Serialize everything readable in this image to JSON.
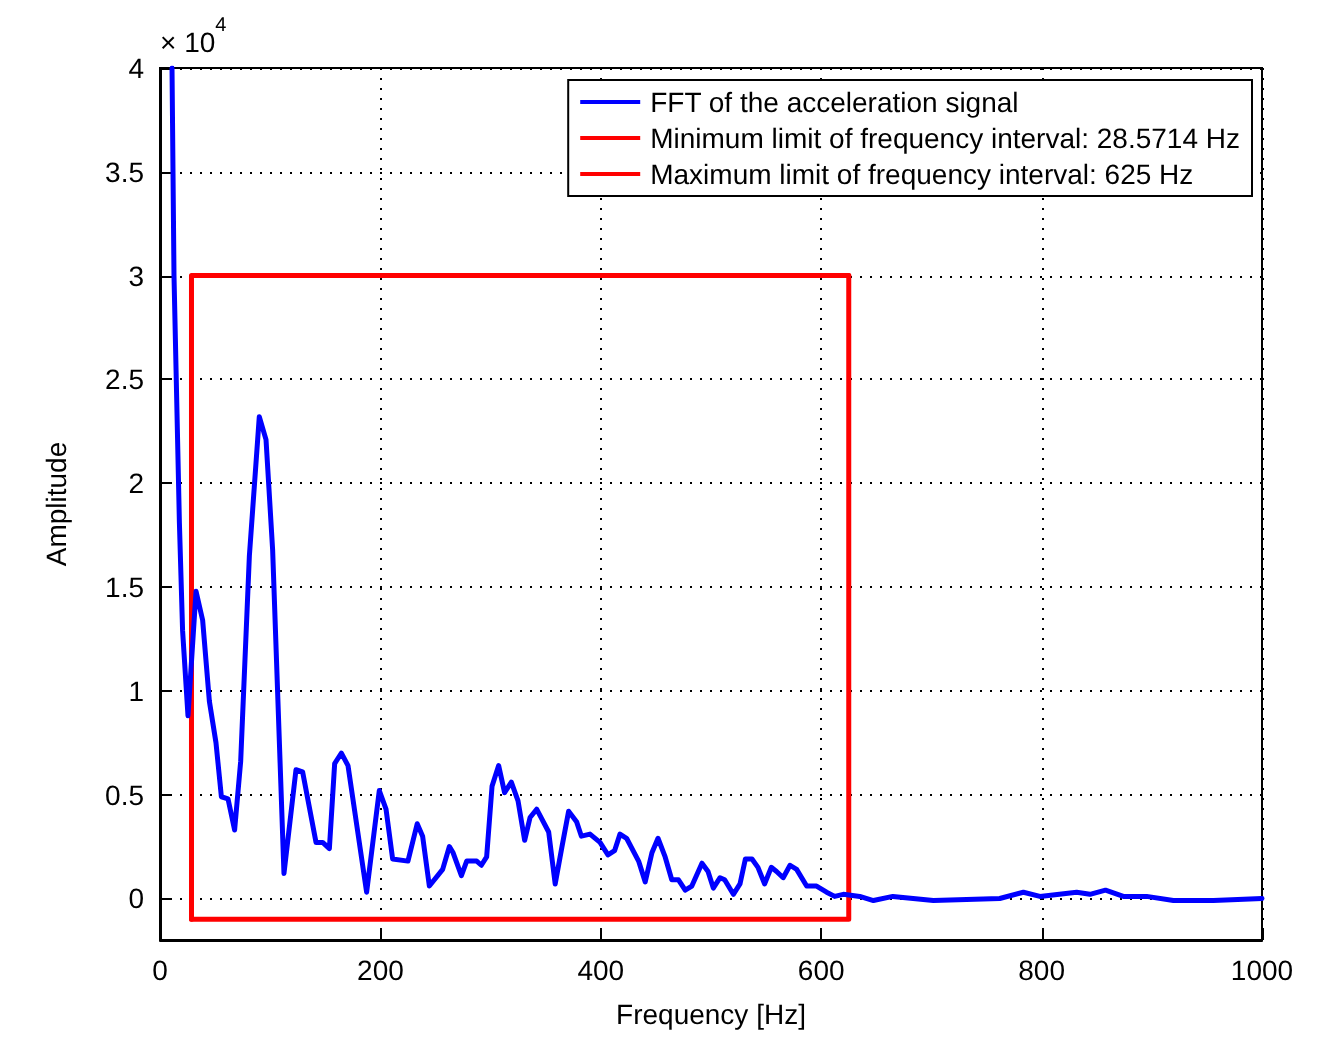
{
  "chart_data": {
    "type": "line",
    "xlabel": "Frequency [Hz]",
    "ylabel": "Amplitude",
    "annotations": [
      "× 10$^{4}$"
    ],
    "xlim": [
      0,
      1000
    ],
    "xticks": [
      0,
      200,
      400,
      600,
      800,
      1000
    ],
    "ylim": [
      -0.2,
      4
    ],
    "yticks": [
      0,
      0.5,
      1,
      1.5,
      2,
      2.5,
      3,
      3.5,
      4
    ],
    "grid": true,
    "legend": "top right",
    "marker": "none",
    "line_style": "solid",
    "series": [
      {
        "name": "FFT of the acceleration signal",
        "color": "#0000ff",
        "x": [
          10.9,
          12.7,
          17.6,
          20.5,
          25.4,
          32.7,
          38.7,
          44.8,
          50.8,
          55.7,
          61.7,
          67.7,
          73.2,
          81.1,
          90.1,
          96.2,
          102.2,
          112.5,
          123.4,
          129.4,
          141.6,
          147.6,
          153.7,
          158.5,
          164.6,
          170.6,
          187.5,
          199,
          205.1,
          211.1,
          225,
          233.4,
          238.3,
          244.4,
          256.5,
          262.6,
          266,
          273.5,
          278.3,
          287.4,
          291.6,
          296.4,
          301.3,
          307.3,
          312.7,
          318.8,
          324.9,
          330.9,
          335.8,
          341.8,
          352.7,
          358.6,
          364.8,
          370.8,
          378,
          382.4,
          390.2,
          399.3,
          406.5,
          412.5,
          417.4,
          423.4,
          434.3,
          440.3,
          446.4,
          451.9,
          458.4,
          464.4,
          470.5,
          476.6,
          482.6,
          491.8,
          497.3,
          502.1,
          508.2,
          512.4,
          520.3,
          526.3,
          531.2,
          537.2,
          542.6,
          548.6,
          554.7,
          559.5,
          565.5,
          571.7,
          577.7,
          586.8,
          595.8,
          604.9,
          612.2,
          620.1,
          635,
          647.4,
          665,
          701.8,
          762,
          783.5,
          798.5,
          831.8,
          843.9,
          858,
          874.2,
          895.3,
          919.6,
          955.9,
          1000
        ],
        "values": [
          4,
          3,
          1.81,
          1.29,
          0.88,
          1.48,
          1.34,
          0.95,
          0.75,
          0.49,
          0.48,
          0.33,
          0.66,
          1.65,
          2.32,
          2.21,
          1.68,
          0.12,
          0.62,
          0.61,
          0.27,
          0.27,
          0.24,
          0.65,
          0.7,
          0.64,
          0.03,
          0.52,
          0.43,
          0.19,
          0.18,
          0.36,
          0.3,
          0.06,
          0.14,
          0.25,
          0.22,
          0.11,
          0.18,
          0.18,
          0.16,
          0.2,
          0.54,
          0.64,
          0.51,
          0.56,
          0.47,
          0.28,
          0.39,
          0.43,
          0.32,
          0.07,
          0.25,
          0.42,
          0.37,
          0.3,
          0.31,
          0.27,
          0.21,
          0.23,
          0.31,
          0.29,
          0.18,
          0.08,
          0.22,
          0.29,
          0.2,
          0.09,
          0.09,
          0.04,
          0.06,
          0.17,
          0.13,
          0.05,
          0.1,
          0.09,
          0.02,
          0.07,
          0.19,
          0.19,
          0.15,
          0.07,
          0.15,
          0.13,
          0.1,
          0.16,
          0.14,
          0.06,
          0.06,
          0.03,
          0.01,
          0.02,
          0.01,
          -0.01,
          0.01,
          -0.01,
          0,
          0.03,
          0.01,
          0.03,
          0.02,
          0.04,
          0.01,
          0.01,
          -0.01,
          -0.01,
          0
        ]
      },
      {
        "name": "Minimum limit of frequency interval: 28.5714 Hz",
        "color": "#ff0000",
        "x": [
          28.5714,
          28.5714,
          625
        ],
        "values": [
          -0.1,
          3,
          3
        ]
      },
      {
        "name": "Maximum limit of frequency interval: 625 Hz",
        "color": "#ff0000",
        "x": [
          28.5714,
          625,
          625
        ],
        "values": [
          -0.1,
          -0.1,
          3
        ]
      }
    ]
  }
}
